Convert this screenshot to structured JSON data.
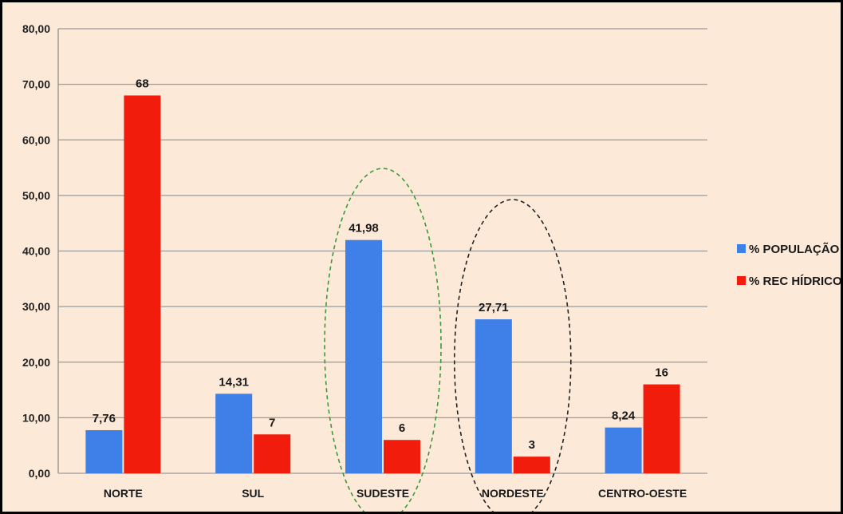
{
  "chart_data": {
    "type": "bar",
    "categories": [
      "NORTE",
      "SUL",
      "SUDESTE",
      "NORDESTE",
      "CENTRO-OESTE"
    ],
    "series": [
      {
        "name": "% POPULAÇÃO",
        "values": [
          7.76,
          14.31,
          41.98,
          27.71,
          8.24
        ],
        "labels": [
          "7,76",
          "14,31",
          "41,98",
          "27,71",
          "8,24"
        ],
        "color": "#3f7fe8"
      },
      {
        "name": "% REC HÍDRICOS",
        "values": [
          68,
          7,
          6,
          3,
          16
        ],
        "labels": [
          "68",
          "7",
          "6",
          "3",
          "16"
        ],
        "color": "#f21c0c"
      }
    ],
    "ylim": [
      0,
      80
    ],
    "yticks": [
      0,
      10,
      20,
      30,
      40,
      50,
      60,
      70,
      80
    ],
    "ytick_labels": [
      "0,00",
      "10,00",
      "20,00",
      "30,00",
      "40,00",
      "50,00",
      "60,00",
      "70,00",
      "80,00"
    ],
    "grid": true,
    "legend_position": "right",
    "title": "",
    "xlabel": "",
    "ylabel": "",
    "annotations": [
      {
        "type": "dashed-ellipse",
        "category": "SUDESTE",
        "color": "#3a9a3a"
      },
      {
        "type": "dashed-ellipse",
        "category": "NORDESTE",
        "color": "#222222"
      }
    ],
    "background_color": "#fce9d8",
    "gridline_color": "#9a9a9a"
  }
}
